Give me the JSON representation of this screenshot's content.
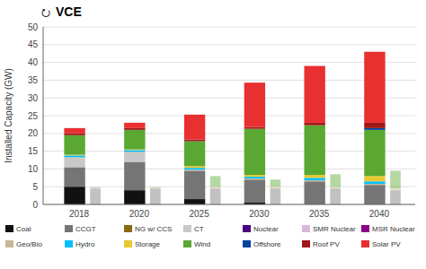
{
  "chart_data": {
    "type": "bar",
    "stacked": true,
    "annotations": [
      "⭮",
      "VCE"
    ],
    "ylabel": "Installed Capacity (GW)",
    "categories": [
      "2018",
      "2020",
      "2025",
      "2030",
      "2035",
      "2040"
    ],
    "series": [
      {
        "name": "Coal",
        "color": "#111111",
        "values": [
          5.0,
          4.0,
          1.5,
          0.5,
          0.0,
          0.0
        ],
        "ghost_values": [
          0.0,
          0.0,
          0.0,
          0.0,
          0.0,
          0.0
        ]
      },
      {
        "name": "CCGT",
        "color": "#757575",
        "values": [
          5.5,
          8.0,
          8.0,
          6.5,
          6.5,
          5.5
        ],
        "ghost_values": [
          4.5,
          4.5,
          4.5,
          4.5,
          4.5,
          4.0
        ]
      },
      {
        "name": "NG w/ CCS",
        "color": "#8B6914",
        "values": [
          0.0,
          0.0,
          0.0,
          0.0,
          0.0,
          0.0
        ],
        "ghost_values": [
          0.0,
          0.0,
          0.0,
          0.0,
          0.0,
          0.0
        ]
      },
      {
        "name": "CT",
        "color": "#c8c8c8",
        "values": [
          2.5,
          2.5,
          0.0,
          0.0,
          0.0,
          0.0
        ],
        "ghost_values": [
          0.0,
          0.0,
          0.0,
          0.0,
          0.0,
          0.0
        ]
      },
      {
        "name": "Nuclear",
        "color": "#4B0082",
        "values": [
          0.0,
          0.0,
          0.0,
          0.0,
          0.0,
          0.0
        ],
        "ghost_values": [
          0.0,
          0.0,
          0.0,
          0.0,
          0.0,
          0.0
        ]
      },
      {
        "name": "SMR Nuclear",
        "color": "#d8b8d8",
        "values": [
          0.0,
          0.0,
          0.0,
          0.0,
          0.0,
          0.0
        ],
        "ghost_values": [
          0.0,
          0.0,
          0.0,
          0.0,
          0.0,
          0.0
        ]
      },
      {
        "name": "MSR Nuclear",
        "color": "#8B008B",
        "values": [
          0.0,
          0.0,
          0.0,
          0.0,
          0.0,
          0.0
        ],
        "ghost_values": [
          0.0,
          0.0,
          0.0,
          0.0,
          0.0,
          0.0
        ]
      },
      {
        "name": "Geo/Bio",
        "color": "#c8b896",
        "values": [
          0.3,
          0.3,
          0.3,
          0.3,
          0.3,
          0.3
        ],
        "ghost_values": [
          0.5,
          0.5,
          0.5,
          0.5,
          0.5,
          0.5
        ]
      },
      {
        "name": "Hydro",
        "color": "#00bfff",
        "values": [
          0.5,
          0.5,
          0.5,
          0.5,
          0.7,
          0.7
        ],
        "ghost_values": [
          0.0,
          0.0,
          0.0,
          0.0,
          0.0,
          0.0
        ]
      },
      {
        "name": "Storage",
        "color": "#e8c832",
        "values": [
          0.2,
          0.2,
          0.5,
          0.5,
          0.8,
          1.5
        ],
        "ghost_values": [
          0.0,
          0.0,
          0.0,
          0.0,
          0.0,
          0.0
        ]
      },
      {
        "name": "Wind",
        "color": "#5aA832",
        "values": [
          5.5,
          5.5,
          7.0,
          13.0,
          14.0,
          13.0
        ],
        "ghost_values": [
          0.0,
          0.0,
          3.0,
          2.0,
          3.5,
          5.0
        ]
      },
      {
        "name": "Offshore",
        "color": "#0045a0",
        "values": [
          0.0,
          0.0,
          0.0,
          0.0,
          0.0,
          0.5
        ],
        "ghost_values": [
          0.0,
          0.0,
          0.0,
          0.0,
          0.0,
          0.0
        ]
      },
      {
        "name": "Roof PV",
        "color": "#a01818",
        "values": [
          0.5,
          0.5,
          0.5,
          0.5,
          0.7,
          1.5
        ],
        "ghost_values": [
          0.0,
          0.0,
          0.0,
          0.0,
          0.0,
          0.0
        ]
      },
      {
        "name": "Solar PV",
        "color": "#e83030",
        "values": [
          1.5,
          1.5,
          7.0,
          12.5,
          16.0,
          20.0
        ],
        "ghost_values": [
          0.0,
          0.0,
          0.0,
          0.0,
          0.0,
          0.0
        ]
      }
    ],
    "ylim": [
      0,
      50
    ],
    "yticks": [
      0,
      5,
      10,
      15,
      20,
      25,
      30,
      35,
      40,
      45,
      50
    ],
    "grid": true,
    "legend": "bottom"
  }
}
